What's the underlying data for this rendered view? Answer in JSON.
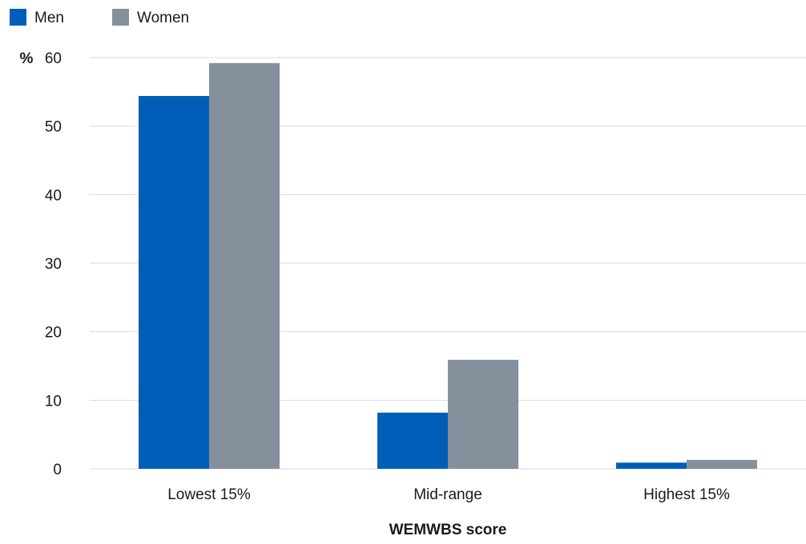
{
  "chart_data": {
    "type": "bar",
    "title": "",
    "xlabel": "WEMWBS score",
    "ylabel": "%",
    "ylim": [
      0,
      60
    ],
    "yticks": [
      0,
      10,
      20,
      30,
      40,
      50,
      60
    ],
    "categories": [
      "Lowest 15%",
      "Mid-range",
      "Highest 15%"
    ],
    "series": [
      {
        "name": "Men",
        "color": "#005EB8",
        "values": [
          54.4,
          8.2,
          0.9
        ]
      },
      {
        "name": "Women",
        "color": "#84919C",
        "values": [
          59.2,
          15.9,
          1.3
        ]
      }
    ],
    "legend_position": "top-left",
    "grid": true,
    "grid_color": "#d9d9d9"
  }
}
